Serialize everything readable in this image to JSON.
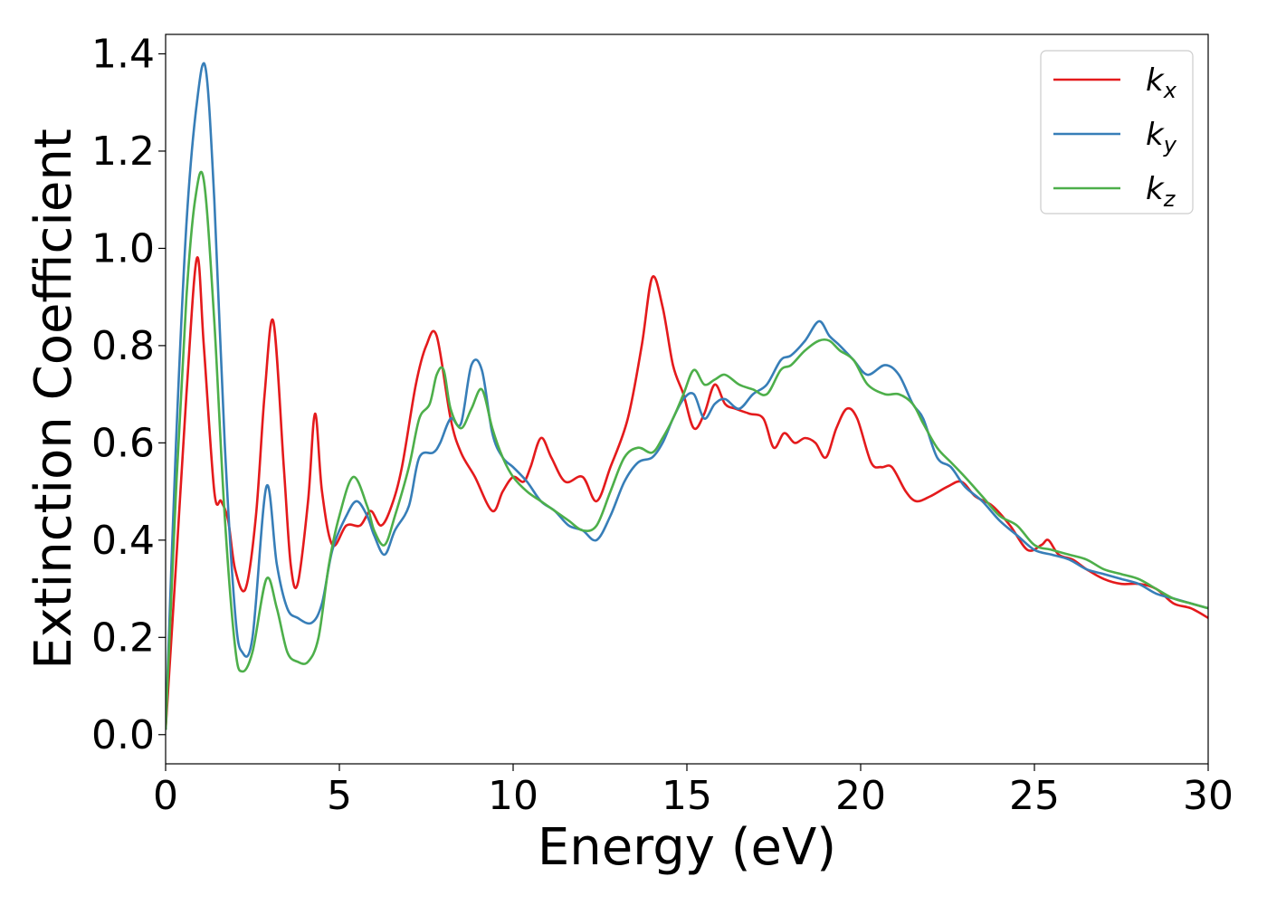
{
  "chart_data": {
    "type": "line",
    "xlabel": "Energy (eV)",
    "ylabel": "Extinction Coefficient",
    "xlim": [
      0,
      30
    ],
    "ylim": [
      -0.06,
      1.44
    ],
    "xticks": [
      0,
      5,
      10,
      15,
      20,
      25,
      30
    ],
    "xtick_labels": [
      "0",
      "5",
      "10",
      "15",
      "20",
      "25",
      "30"
    ],
    "yticks": [
      0.0,
      0.2,
      0.4,
      0.6,
      0.8,
      1.0,
      1.2,
      1.4
    ],
    "ytick_labels": [
      "0.0",
      "0.2",
      "0.4",
      "0.6",
      "0.8",
      "1.0",
      "1.2",
      "1.4"
    ],
    "grid": false,
    "legend_position": "top-right",
    "series": [
      {
        "name": "k",
        "subscript": "x",
        "color": "#e41a1c",
        "x": [
          0,
          0.3,
          0.6,
          0.9,
          1.1,
          1.4,
          1.6,
          1.8,
          2.0,
          2.3,
          2.6,
          2.85,
          3.1,
          3.4,
          3.6,
          3.8,
          4.1,
          4.3,
          4.5,
          4.8,
          5.2,
          5.6,
          5.9,
          6.2,
          6.5,
          6.8,
          7.2,
          7.5,
          7.8,
          8.2,
          8.5,
          8.9,
          9.4,
          9.7,
          10.0,
          10.3,
          10.5,
          10.8,
          11.1,
          11.5,
          12.0,
          12.4,
          12.8,
          13.3,
          13.7,
          14.0,
          14.3,
          14.6,
          14.9,
          15.2,
          15.5,
          15.8,
          16.1,
          16.4,
          16.8,
          17.2,
          17.5,
          17.8,
          18.1,
          18.4,
          18.7,
          19.0,
          19.3,
          19.6,
          19.9,
          20.3,
          20.6,
          20.9,
          21.3,
          21.6,
          22.0,
          22.5,
          22.9,
          23.3,
          23.8,
          24.3,
          24.8,
          25.2,
          25.4,
          25.7,
          26.1,
          26.5,
          27.0,
          27.5,
          28.0,
          28.5,
          29.0,
          29.5,
          30.0
        ],
        "y": [
          0.01,
          0.35,
          0.7,
          0.98,
          0.8,
          0.5,
          0.48,
          0.44,
          0.34,
          0.3,
          0.45,
          0.7,
          0.85,
          0.55,
          0.35,
          0.31,
          0.48,
          0.66,
          0.5,
          0.39,
          0.43,
          0.43,
          0.46,
          0.43,
          0.47,
          0.55,
          0.72,
          0.8,
          0.82,
          0.65,
          0.58,
          0.53,
          0.46,
          0.5,
          0.53,
          0.52,
          0.55,
          0.61,
          0.57,
          0.52,
          0.53,
          0.48,
          0.55,
          0.65,
          0.8,
          0.94,
          0.88,
          0.76,
          0.7,
          0.63,
          0.66,
          0.72,
          0.68,
          0.67,
          0.66,
          0.65,
          0.59,
          0.62,
          0.6,
          0.61,
          0.6,
          0.57,
          0.63,
          0.67,
          0.65,
          0.56,
          0.55,
          0.55,
          0.5,
          0.48,
          0.49,
          0.51,
          0.52,
          0.49,
          0.47,
          0.43,
          0.38,
          0.39,
          0.4,
          0.37,
          0.36,
          0.34,
          0.32,
          0.31,
          0.31,
          0.3,
          0.27,
          0.26,
          0.24
        ]
      },
      {
        "name": "k",
        "subscript": "y",
        "color": "#377eb8",
        "x": [
          0,
          0.3,
          0.6,
          0.9,
          1.15,
          1.4,
          1.7,
          2.0,
          2.2,
          2.5,
          2.9,
          3.2,
          3.5,
          3.8,
          4.2,
          4.5,
          4.8,
          5.2,
          5.5,
          5.8,
          6.0,
          6.3,
          6.6,
          7.0,
          7.3,
          7.7,
          7.9,
          8.2,
          8.5,
          8.8,
          9.1,
          9.4,
          9.7,
          10.0,
          10.4,
          10.8,
          11.2,
          11.6,
          12.0,
          12.4,
          12.8,
          13.2,
          13.6,
          14.0,
          14.3,
          14.6,
          14.9,
          15.2,
          15.5,
          15.8,
          16.1,
          16.5,
          16.9,
          17.3,
          17.7,
          18.0,
          18.4,
          18.8,
          19.1,
          19.4,
          19.8,
          20.2,
          20.7,
          21.1,
          21.5,
          21.8,
          22.2,
          22.6,
          23.0,
          23.5,
          24.0,
          24.5,
          25.0,
          25.5,
          26.0,
          26.5,
          27.0,
          27.5,
          28.0,
          28.5,
          29.0,
          29.5,
          30.0
        ],
        "y": [
          0.01,
          0.6,
          1.05,
          1.3,
          1.37,
          1.1,
          0.6,
          0.25,
          0.17,
          0.2,
          0.51,
          0.35,
          0.26,
          0.24,
          0.23,
          0.27,
          0.38,
          0.45,
          0.48,
          0.45,
          0.41,
          0.37,
          0.42,
          0.47,
          0.57,
          0.58,
          0.6,
          0.65,
          0.64,
          0.76,
          0.75,
          0.62,
          0.57,
          0.55,
          0.52,
          0.48,
          0.46,
          0.43,
          0.42,
          0.4,
          0.45,
          0.52,
          0.56,
          0.57,
          0.6,
          0.65,
          0.69,
          0.7,
          0.65,
          0.68,
          0.69,
          0.67,
          0.7,
          0.72,
          0.77,
          0.78,
          0.81,
          0.85,
          0.82,
          0.8,
          0.77,
          0.74,
          0.76,
          0.74,
          0.68,
          0.65,
          0.57,
          0.55,
          0.51,
          0.48,
          0.44,
          0.41,
          0.38,
          0.37,
          0.36,
          0.34,
          0.33,
          0.32,
          0.31,
          0.29,
          0.28,
          0.27,
          0.26
        ]
      },
      {
        "name": "k",
        "subscript": "z",
        "color": "#4daf4a",
        "x": [
          0,
          0.3,
          0.6,
          0.85,
          1.1,
          1.4,
          1.7,
          2.0,
          2.2,
          2.5,
          2.9,
          3.2,
          3.5,
          3.8,
          4.1,
          4.4,
          4.7,
          5.0,
          5.4,
          5.8,
          6.0,
          6.3,
          6.6,
          7.0,
          7.3,
          7.6,
          7.8,
          8.0,
          8.2,
          8.5,
          8.8,
          9.1,
          9.4,
          9.7,
          10.0,
          10.4,
          10.8,
          11.2,
          11.6,
          12.0,
          12.4,
          12.8,
          13.2,
          13.6,
          14.0,
          14.3,
          14.6,
          14.9,
          15.2,
          15.5,
          15.8,
          16.1,
          16.5,
          16.9,
          17.3,
          17.7,
          18.0,
          18.4,
          18.8,
          19.1,
          19.4,
          19.8,
          20.2,
          20.7,
          21.1,
          21.5,
          21.8,
          22.2,
          22.6,
          23.0,
          23.5,
          24.0,
          24.5,
          25.0,
          25.5,
          26.0,
          26.5,
          27.0,
          27.5,
          28.0,
          28.5,
          29.0,
          29.5,
          30.0
        ],
        "y": [
          0.01,
          0.5,
          0.9,
          1.1,
          1.14,
          0.85,
          0.45,
          0.18,
          0.13,
          0.17,
          0.32,
          0.26,
          0.17,
          0.15,
          0.15,
          0.2,
          0.35,
          0.45,
          0.53,
          0.47,
          0.42,
          0.39,
          0.45,
          0.55,
          0.65,
          0.68,
          0.74,
          0.75,
          0.67,
          0.63,
          0.67,
          0.71,
          0.63,
          0.57,
          0.53,
          0.5,
          0.48,
          0.46,
          0.44,
          0.42,
          0.43,
          0.5,
          0.57,
          0.59,
          0.58,
          0.61,
          0.65,
          0.7,
          0.75,
          0.72,
          0.73,
          0.74,
          0.72,
          0.71,
          0.7,
          0.75,
          0.76,
          0.79,
          0.81,
          0.81,
          0.79,
          0.77,
          0.72,
          0.7,
          0.7,
          0.68,
          0.64,
          0.59,
          0.56,
          0.53,
          0.49,
          0.45,
          0.43,
          0.39,
          0.38,
          0.37,
          0.36,
          0.34,
          0.33,
          0.32,
          0.3,
          0.28,
          0.27,
          0.26
        ]
      }
    ]
  }
}
